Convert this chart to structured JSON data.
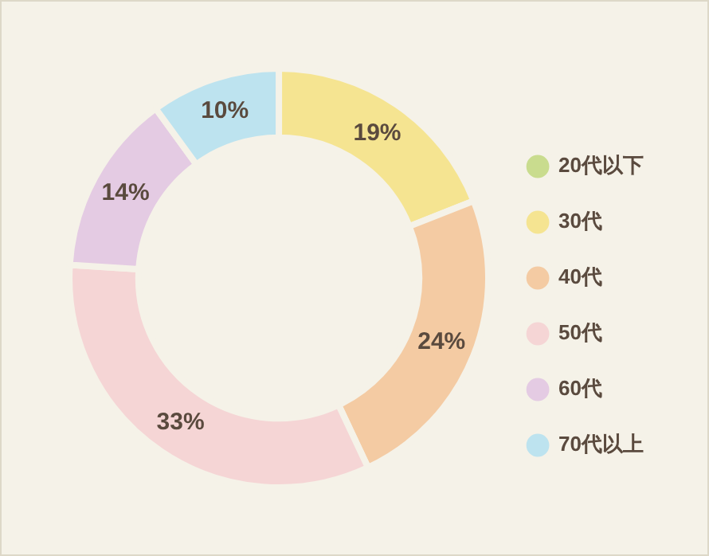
{
  "chart_data": {
    "type": "donut",
    "categories": [
      "20代以下",
      "30代",
      "40代",
      "50代",
      "60代",
      "70代以上"
    ],
    "values": [
      0,
      19,
      24,
      33,
      14,
      10
    ],
    "value_labels": [
      null,
      "19%",
      "24%",
      "33%",
      "14%",
      "10%"
    ],
    "colors": [
      "#c9dc8e",
      "#f5e491",
      "#f4cba3",
      "#f5d5d5",
      "#e4cbe3",
      "#bde3ef"
    ],
    "legend": "right"
  }
}
